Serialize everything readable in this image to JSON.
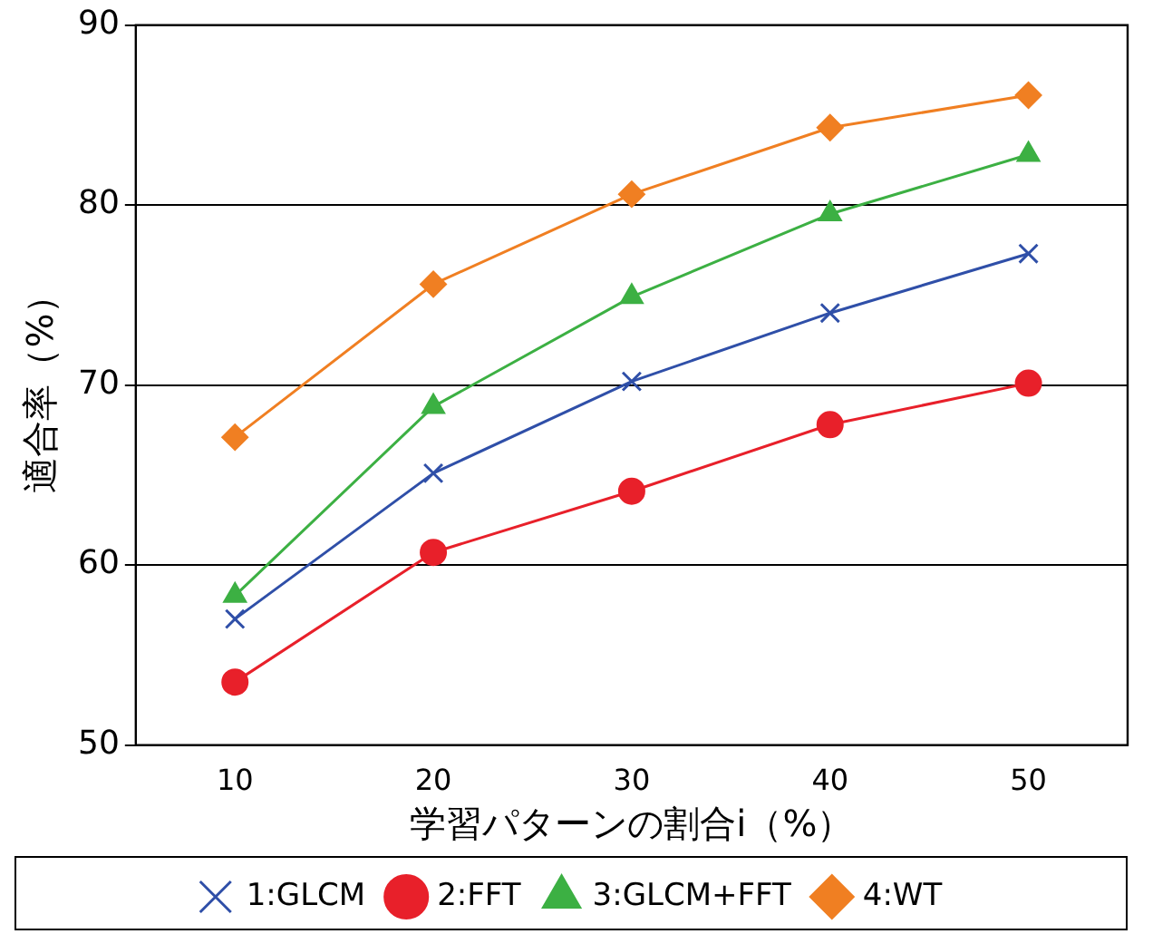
{
  "chart_data": {
    "type": "line",
    "xlabel": "学習パターンの割合i（%）",
    "ylabel": "適合率（%）",
    "categories": [
      "10",
      "20",
      "30",
      "40",
      "50"
    ],
    "ylim": [
      50,
      90
    ],
    "yticks": [
      50,
      60,
      70,
      80,
      90
    ],
    "grid": "y",
    "legend": "bottom",
    "line_style": "solid",
    "series": [
      {
        "name": "1:GLCM",
        "color": "#2f4fa8",
        "marker": "cross",
        "values": [
          57.0,
          65.1,
          70.2,
          74.0,
          77.3
        ]
      },
      {
        "name": "2:FFT",
        "color": "#e8202a",
        "marker": "circle",
        "values": [
          53.5,
          60.7,
          64.1,
          67.8,
          70.1
        ]
      },
      {
        "name": "3:GLCM+FFT",
        "color": "#3cb043",
        "marker": "triangle",
        "values": [
          58.3,
          68.8,
          74.9,
          79.5,
          82.8
        ]
      },
      {
        "name": "4:WT",
        "color": "#f07f22",
        "marker": "diamond",
        "values": [
          67.1,
          75.6,
          80.6,
          84.3,
          86.1
        ]
      }
    ]
  }
}
